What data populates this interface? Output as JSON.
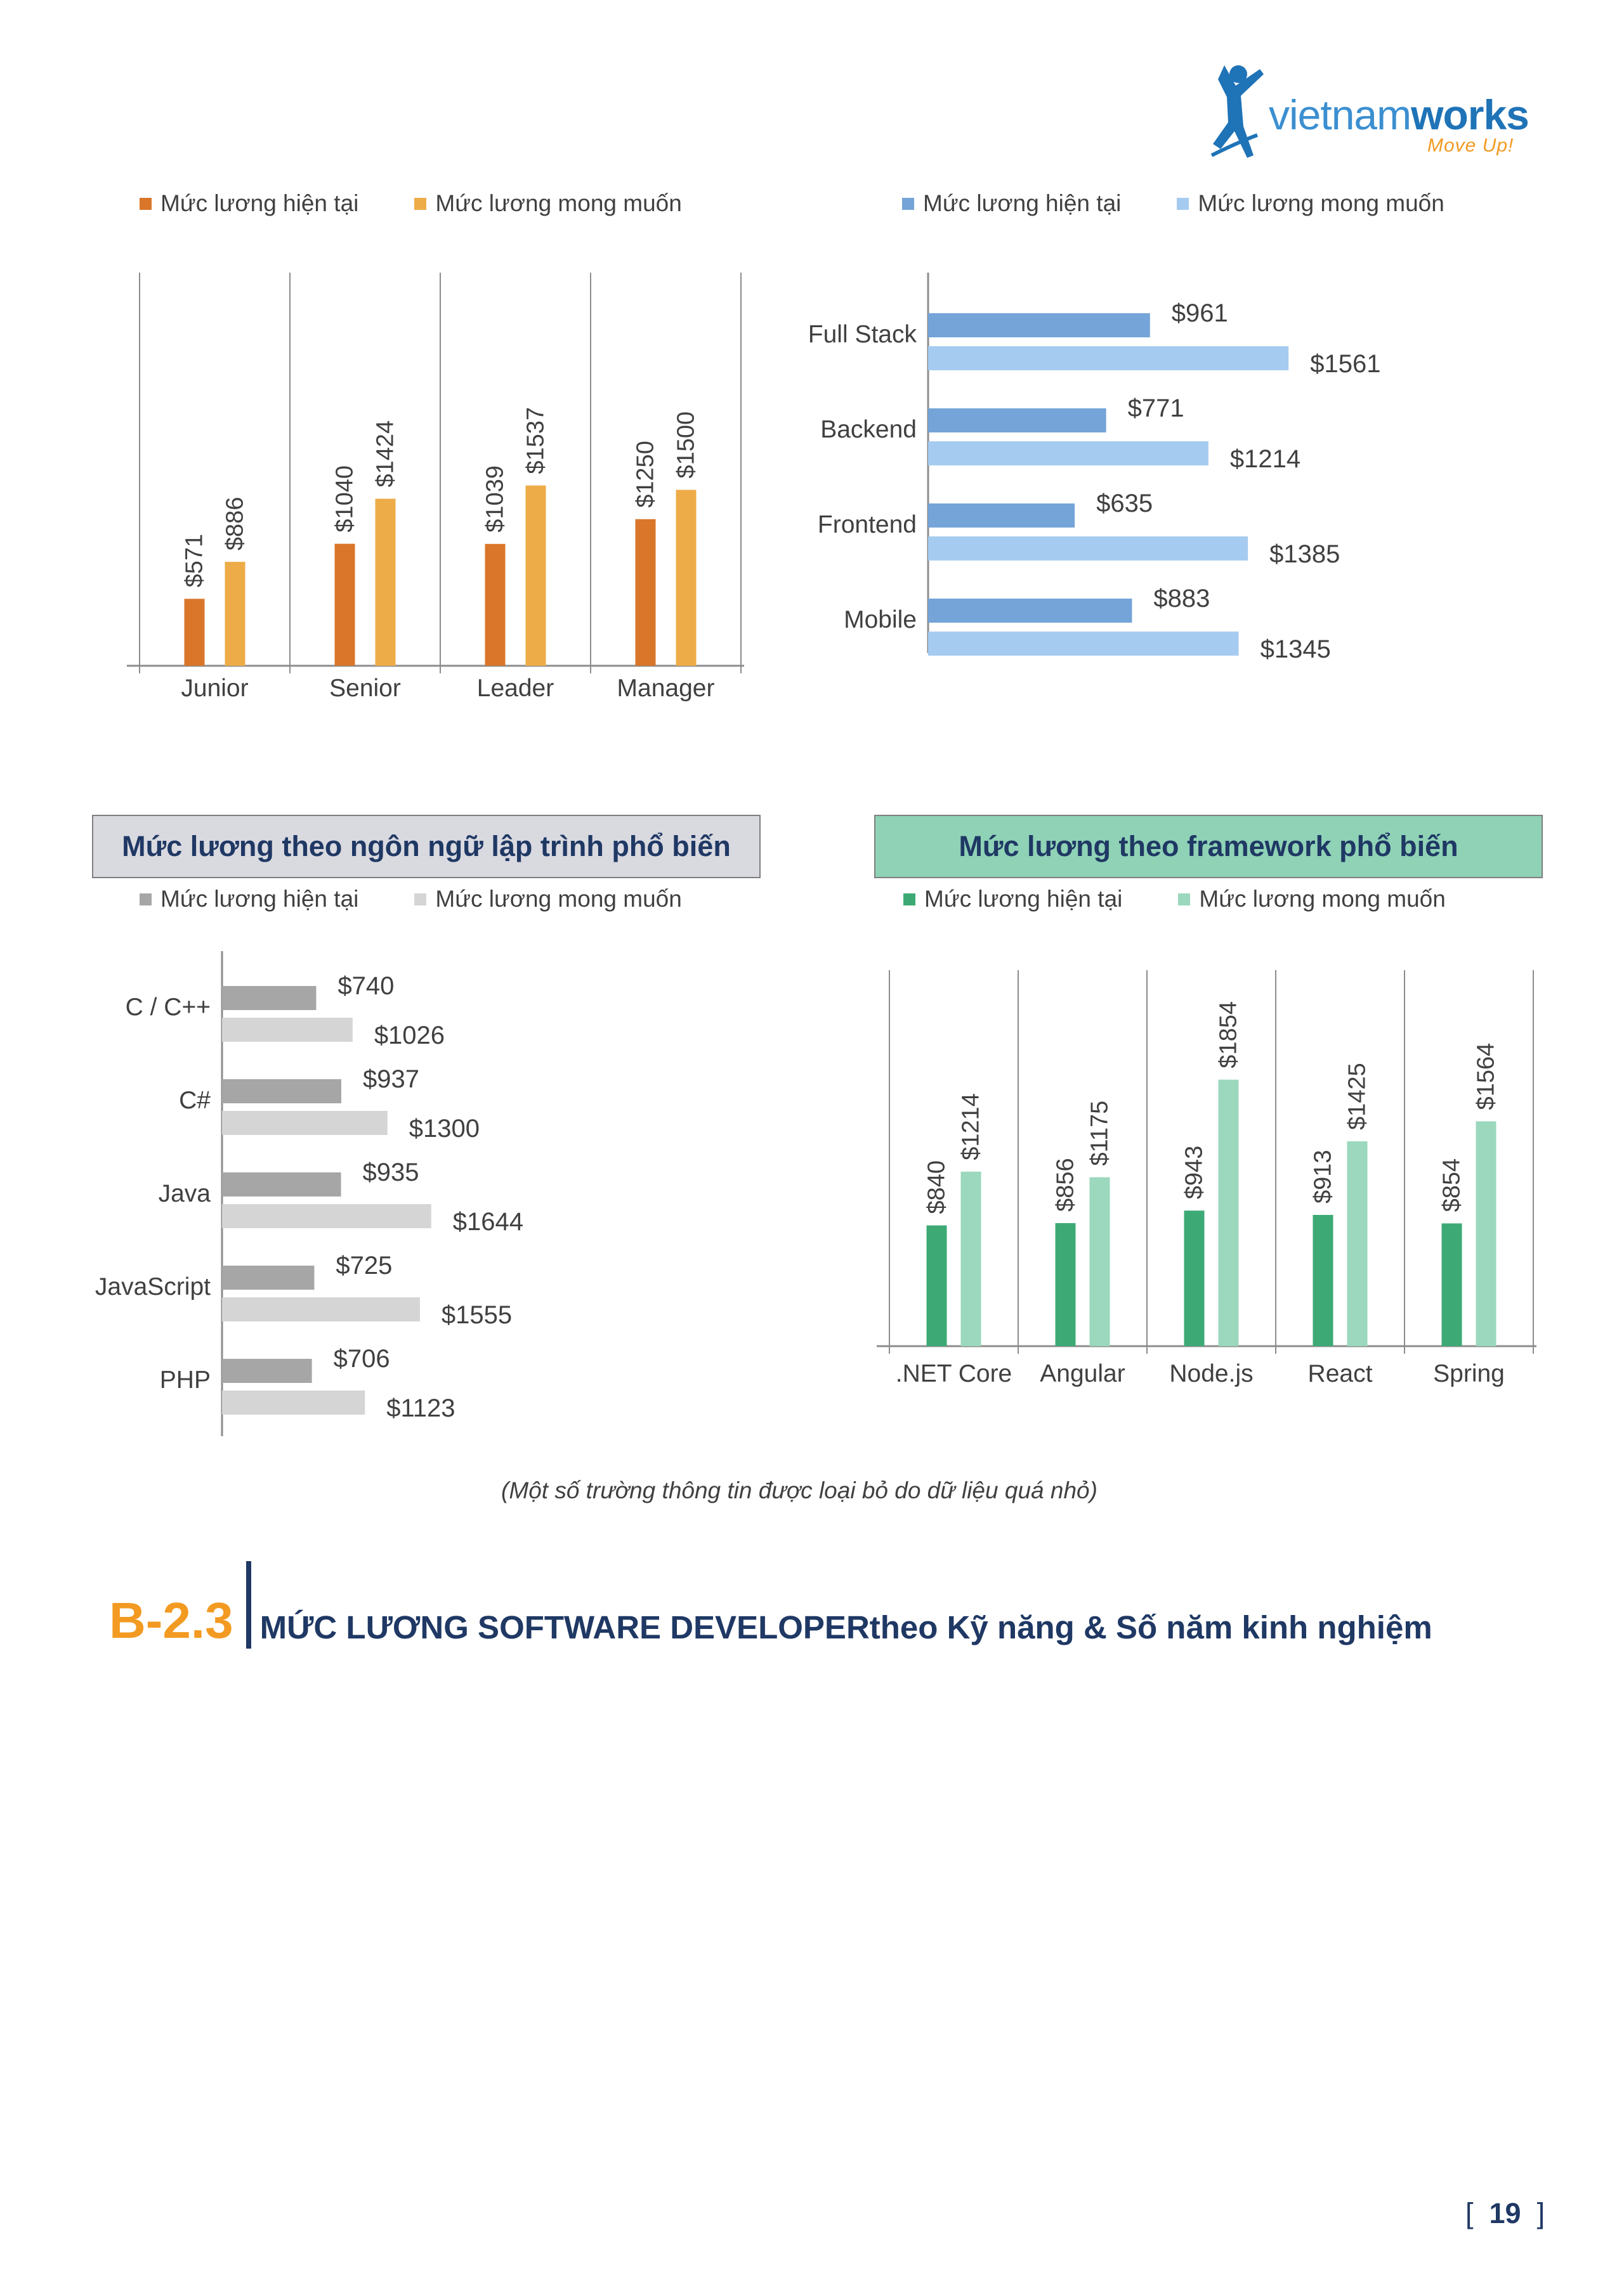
{
  "logo": {
    "brand_light": "vietnam",
    "brand_bold": "works",
    "tagline": "Move Up!"
  },
  "legend": {
    "current": "Mức lương hiện tại",
    "desired": "Mức lương mong muốn"
  },
  "colors": {
    "level_current": "#d9762a",
    "level_desired": "#eeac48",
    "role_current": "#74a4d8",
    "role_desired": "#a6cbf0",
    "lang_current": "#a6a6a6",
    "lang_desired": "#d5d5d5",
    "fw_current": "#3daa75",
    "fw_desired": "#9bd8bd",
    "lang_title_bg": "#d9d9e0",
    "fw_title_bg": "#8fd2b6"
  },
  "sections": {
    "languages_title": "Mức lương theo ngôn ngữ lập trình phổ biến",
    "frameworks_title": "Mức lương theo framework phổ biến"
  },
  "chart_data": [
    {
      "id": "level",
      "type": "bar",
      "orientation": "vertical",
      "categories": [
        "Junior",
        "Senior",
        "Leader",
        "Manager"
      ],
      "series": [
        {
          "name": "Mức lương hiện tại",
          "values": [
            571,
            1040,
            1039,
            1250
          ]
        },
        {
          "name": "Mức lương mong muốn",
          "values": [
            886,
            1424,
            1537,
            1500
          ]
        }
      ],
      "labels": [
        [
          "$571",
          "$1040",
          "$1039",
          "$1250"
        ],
        [
          "$886",
          "$1424",
          "$1537",
          "$1500"
        ]
      ],
      "legend": "top"
    },
    {
      "id": "role",
      "type": "bar",
      "orientation": "horizontal",
      "categories": [
        "Full Stack",
        "Backend",
        "Frontend",
        "Mobile"
      ],
      "series": [
        {
          "name": "Mức lương hiện tại",
          "values": [
            961,
            771,
            635,
            883
          ]
        },
        {
          "name": "Mức lương mong muốn",
          "values": [
            1561,
            1214,
            1385,
            1345
          ]
        }
      ],
      "labels": [
        [
          "$961",
          "$771",
          "$635",
          "$883"
        ],
        [
          "$1561",
          "$1214",
          "$1385",
          "$1345"
        ]
      ],
      "legend": "top"
    },
    {
      "id": "language",
      "type": "bar",
      "orientation": "horizontal",
      "categories": [
        "C / C++",
        "C#",
        "Java",
        "JavaScript",
        "PHP"
      ],
      "series": [
        {
          "name": "Mức lương hiện tại",
          "values": [
            740,
            937,
            935,
            725,
            706
          ]
        },
        {
          "name": "Mức lương mong muốn",
          "values": [
            1026,
            1300,
            1644,
            1555,
            1123
          ]
        }
      ],
      "labels": [
        [
          "$740",
          "$937",
          "$935",
          "$725",
          "$706"
        ],
        [
          "$1026",
          "$1300",
          "$1644",
          "$1555",
          "$1123"
        ]
      ],
      "legend": "top"
    },
    {
      "id": "framework",
      "type": "bar",
      "orientation": "vertical",
      "categories": [
        ".NET Core",
        "Angular",
        "Node.js",
        "React",
        "Spring"
      ],
      "series": [
        {
          "name": "Mức lương hiện tại",
          "values": [
            840,
            856,
            943,
            913,
            854
          ]
        },
        {
          "name": "Mức lương mong muốn",
          "values": [
            1214,
            1175,
            1854,
            1425,
            1564
          ]
        }
      ],
      "labels": [
        [
          "$840",
          "$856",
          "$943",
          "$913",
          "$854"
        ],
        [
          "$1214",
          "$1175",
          "$1854",
          "$1425",
          "$1564"
        ]
      ],
      "legend": "top"
    }
  ],
  "footnote": "(Một số trường thông tin được loại bỏ do dữ liệu quá nhỏ)",
  "heading": {
    "number": "B-2.3",
    "title": "MỨC LƯƠNG SOFTWARE DEVELOPERtheo Kỹ năng & Số năm kinh nghiệm"
  },
  "page": {
    "left_bracket": "[",
    "number": "19",
    "right_bracket": "]"
  }
}
